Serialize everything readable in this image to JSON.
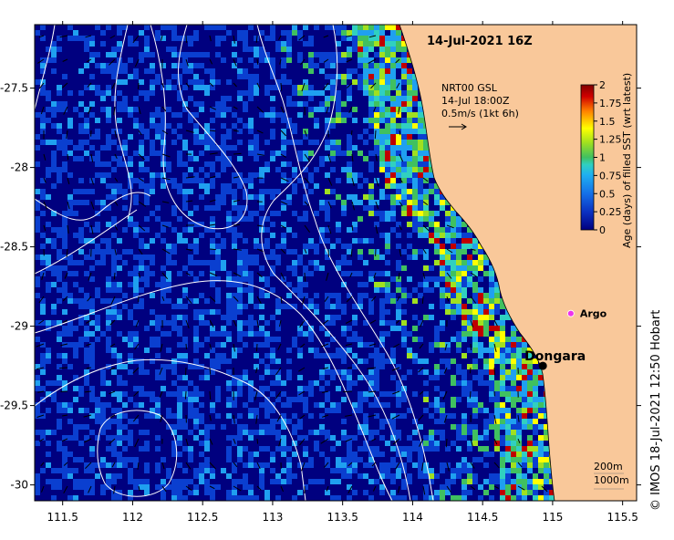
{
  "title": "14-Jul-2021 16Z",
  "map": {
    "lon_range": [
      111.3,
      115.6
    ],
    "lat_range": [
      -30.1,
      -27.1
    ],
    "x_ticks": [
      "111.5",
      "112",
      "112.5",
      "113",
      "113.5",
      "114",
      "114.5",
      "115",
      "115.5"
    ],
    "x_tick_values": [
      111.5,
      112,
      112.5,
      113,
      113.5,
      114,
      114.5,
      115,
      115.5
    ],
    "y_ticks": [
      "-27.5",
      "-28",
      "-28.5",
      "-29",
      "-29.5",
      "-30"
    ],
    "y_tick_values": [
      -27.5,
      -28,
      -28.5,
      -29,
      -29.5,
      -30
    ]
  },
  "current_legend": {
    "line1": "NRT00 GSL",
    "line2": "14-Jul 18:00Z",
    "line3": "0.5m/s (1kt 6h)"
  },
  "colorbar": {
    "label": "Age (days) of filled SST (wrt latest)",
    "tick_labels": [
      "0",
      "0.25",
      "0.5",
      "0.75",
      "1",
      "1.25",
      "1.5",
      "1.75",
      "2"
    ],
    "tick_values": [
      0,
      0.25,
      0.5,
      0.75,
      1,
      1.25,
      1.5,
      1.75,
      2
    ],
    "range": [
      0,
      2
    ],
    "colors": [
      "#00007f",
      "#0a3fd0",
      "#1fa0f0",
      "#30d0c0",
      "#40c060",
      "#a0e020",
      "#ffff00",
      "#ff8000",
      "#c00000",
      "#800000"
    ]
  },
  "places": [
    {
      "name": "Dongara",
      "lon": 114.93,
      "lat": -29.25,
      "color": "#000000"
    },
    {
      "name": "Argo",
      "lon": 115.13,
      "lat": -28.92,
      "color": "#ee33ee"
    }
  ],
  "depth_key": {
    "line1": "200m",
    "line2": "1000m"
  },
  "credit": "© IMOS 18-Jul-2021 12:50 Hobart",
  "colors": {
    "land": "#f9c89a",
    "ocean": "#00007f",
    "contour": "#ffffff"
  }
}
